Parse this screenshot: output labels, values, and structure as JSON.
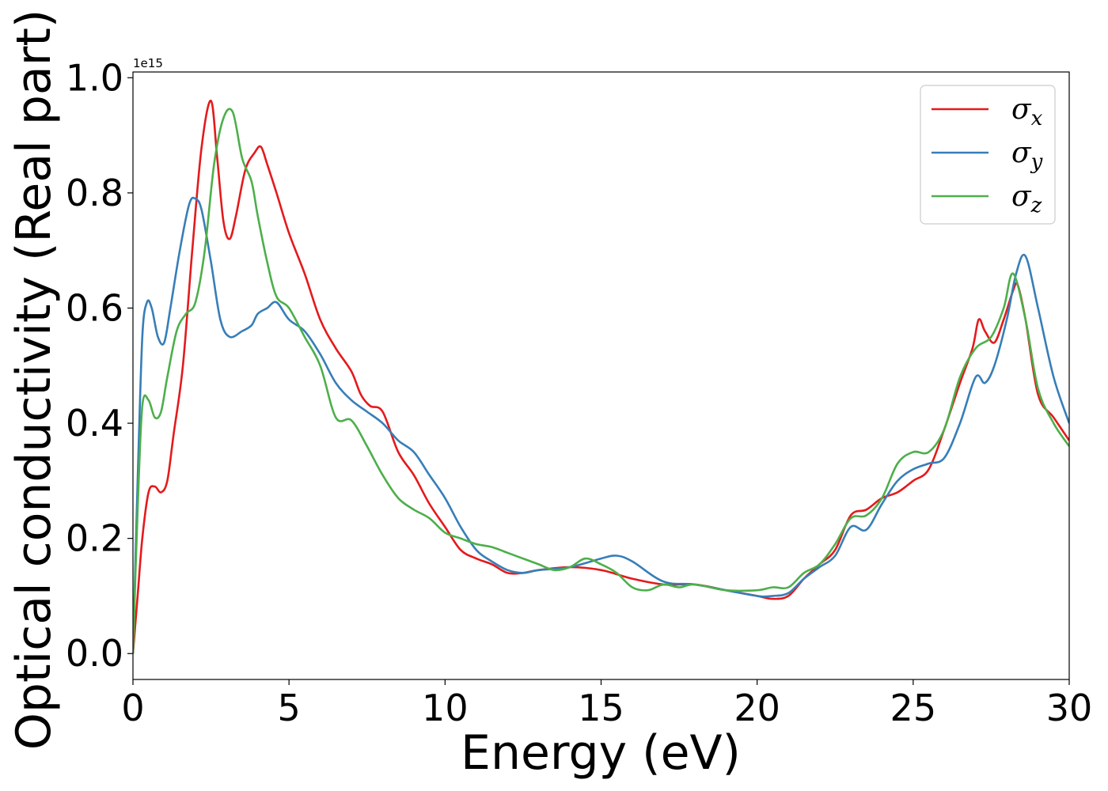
{
  "chart_data": {
    "type": "line",
    "xlabel": "Energy (eV)",
    "ylabel": "Optical conductivity (Real part)",
    "offset_text": "1e15",
    "xlim": [
      0,
      30
    ],
    "ylim": [
      -0.045,
      1.01
    ],
    "xticks": [
      0,
      5,
      10,
      15,
      20,
      25,
      30
    ],
    "xtick_labels": [
      "0",
      "5",
      "10",
      "15",
      "20",
      "25",
      "30"
    ],
    "yticks": [
      0.0,
      0.2,
      0.4,
      0.6,
      0.8,
      1.0
    ],
    "ytick_labels": [
      "0.0",
      "0.2",
      "0.4",
      "0.6",
      "0.8",
      "1.0"
    ],
    "grid": false,
    "legend_position": "top-right",
    "series": [
      {
        "name": "σx",
        "symbol": "σ",
        "subscript": "x",
        "color": "#e41a1c",
        "x": [
          0,
          0.15,
          0.3,
          0.5,
          0.7,
          0.9,
          1.1,
          1.3,
          1.6,
          1.9,
          2.2,
          2.5,
          2.7,
          2.9,
          3.1,
          3.3,
          3.6,
          3.9,
          4.1,
          4.3,
          4.6,
          5.0,
          5.5,
          6.0,
          6.5,
          7.0,
          7.3,
          7.6,
          8.0,
          8.5,
          9.0,
          9.5,
          10.0,
          10.5,
          11.0,
          11.5,
          12.0,
          12.5,
          13.0,
          14.0,
          15.0,
          16.0,
          17.0,
          18.0,
          19.0,
          20.0,
          20.5,
          21.0,
          21.5,
          22.0,
          22.5,
          23.0,
          23.5,
          24.0,
          24.5,
          25.0,
          25.5,
          26.0,
          26.5,
          26.9,
          27.1,
          27.3,
          27.6,
          27.9,
          28.2,
          28.35,
          28.6,
          29.0,
          29.5,
          30.0
        ],
        "y": [
          0.0,
          0.1,
          0.2,
          0.28,
          0.29,
          0.28,
          0.3,
          0.38,
          0.5,
          0.7,
          0.88,
          0.96,
          0.86,
          0.75,
          0.72,
          0.76,
          0.84,
          0.87,
          0.88,
          0.85,
          0.8,
          0.73,
          0.66,
          0.58,
          0.53,
          0.49,
          0.45,
          0.43,
          0.42,
          0.35,
          0.31,
          0.26,
          0.22,
          0.18,
          0.165,
          0.155,
          0.14,
          0.14,
          0.145,
          0.15,
          0.145,
          0.13,
          0.12,
          0.12,
          0.11,
          0.1,
          0.095,
          0.1,
          0.13,
          0.155,
          0.18,
          0.24,
          0.25,
          0.27,
          0.28,
          0.3,
          0.32,
          0.39,
          0.47,
          0.53,
          0.58,
          0.56,
          0.54,
          0.58,
          0.63,
          0.64,
          0.58,
          0.45,
          0.41,
          0.37
        ]
      },
      {
        "name": "σy",
        "symbol": "σ",
        "subscript": "y",
        "color": "#377eb8",
        "x": [
          0,
          0.15,
          0.3,
          0.45,
          0.6,
          0.8,
          1.0,
          1.2,
          1.5,
          1.8,
          2.0,
          2.2,
          2.5,
          2.8,
          3.1,
          3.5,
          3.8,
          4.0,
          4.3,
          4.6,
          5.0,
          5.5,
          6.0,
          6.5,
          7.0,
          7.5,
          8.0,
          8.5,
          9.0,
          9.5,
          10.0,
          10.5,
          11.0,
          11.5,
          12.0,
          12.5,
          13.0,
          14.0,
          15.0,
          15.5,
          16.0,
          17.0,
          18.0,
          19.0,
          20.0,
          20.5,
          21.0,
          21.5,
          22.0,
          22.5,
          23.0,
          23.5,
          24.0,
          24.5,
          25.0,
          25.5,
          26.0,
          26.5,
          27.0,
          27.3,
          27.6,
          28.0,
          28.3,
          28.6,
          29.0,
          29.5,
          30.0
        ],
        "y": [
          0.0,
          0.3,
          0.55,
          0.61,
          0.6,
          0.55,
          0.54,
          0.6,
          0.7,
          0.78,
          0.79,
          0.77,
          0.68,
          0.58,
          0.55,
          0.56,
          0.57,
          0.59,
          0.6,
          0.61,
          0.58,
          0.56,
          0.52,
          0.47,
          0.44,
          0.42,
          0.4,
          0.37,
          0.35,
          0.31,
          0.27,
          0.22,
          0.18,
          0.16,
          0.145,
          0.14,
          0.145,
          0.15,
          0.165,
          0.17,
          0.16,
          0.125,
          0.12,
          0.11,
          0.1,
          0.1,
          0.105,
          0.13,
          0.15,
          0.17,
          0.22,
          0.215,
          0.26,
          0.3,
          0.32,
          0.33,
          0.34,
          0.4,
          0.48,
          0.47,
          0.5,
          0.58,
          0.66,
          0.69,
          0.6,
          0.48,
          0.4
        ]
      },
      {
        "name": "σz",
        "symbol": "σ",
        "subscript": "z",
        "color": "#4daf4a",
        "x": [
          0,
          0.15,
          0.3,
          0.5,
          0.7,
          0.9,
          1.1,
          1.4,
          1.7,
          2.0,
          2.3,
          2.6,
          2.9,
          3.2,
          3.5,
          3.8,
          4.0,
          4.3,
          4.6,
          5.0,
          5.5,
          6.0,
          6.5,
          7.0,
          7.5,
          8.0,
          8.5,
          9.0,
          9.5,
          10.0,
          10.5,
          11.0,
          11.5,
          12.0,
          12.5,
          13.0,
          13.5,
          14.0,
          14.5,
          15.0,
          15.5,
          16.0,
          16.5,
          17.0,
          17.5,
          18.0,
          19.0,
          20.0,
          20.5,
          21.0,
          21.5,
          22.0,
          22.5,
          23.0,
          23.5,
          24.0,
          24.5,
          25.0,
          25.5,
          26.0,
          26.5,
          27.0,
          27.5,
          27.9,
          28.2,
          28.6,
          29.0,
          29.5,
          30.0
        ],
        "y": [
          0.0,
          0.25,
          0.43,
          0.44,
          0.41,
          0.42,
          0.48,
          0.56,
          0.59,
          0.61,
          0.7,
          0.85,
          0.93,
          0.94,
          0.86,
          0.82,
          0.76,
          0.68,
          0.62,
          0.6,
          0.55,
          0.5,
          0.41,
          0.405,
          0.36,
          0.31,
          0.27,
          0.25,
          0.235,
          0.21,
          0.2,
          0.19,
          0.185,
          0.175,
          0.165,
          0.155,
          0.145,
          0.15,
          0.165,
          0.155,
          0.14,
          0.115,
          0.11,
          0.12,
          0.115,
          0.12,
          0.11,
          0.11,
          0.115,
          0.115,
          0.14,
          0.155,
          0.19,
          0.235,
          0.24,
          0.27,
          0.33,
          0.35,
          0.35,
          0.39,
          0.48,
          0.53,
          0.55,
          0.6,
          0.66,
          0.58,
          0.46,
          0.4,
          0.36
        ]
      }
    ]
  }
}
